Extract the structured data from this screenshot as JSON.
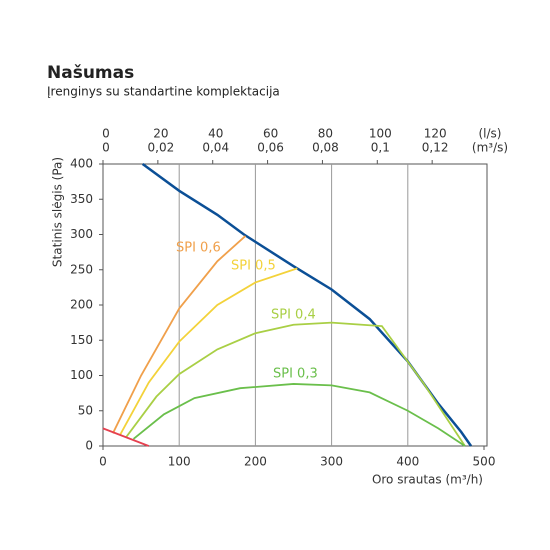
{
  "chart_data": {
    "type": "line",
    "title": "Našumas",
    "subtitle": "Įrenginys su standartine komplektacija",
    "x_label": "Oro srautas (m³/h)",
    "y_label": "Statinis slėgis (Pa)",
    "xlim": [
      0,
      500
    ],
    "xticks": [
      0,
      100,
      200,
      300,
      400,
      500
    ],
    "ylim": [
      0,
      400
    ],
    "yticks": [
      0,
      50,
      100,
      150,
      200,
      250,
      300,
      350,
      400
    ],
    "grid": true,
    "top_axes": [
      {
        "label": "(l/s)",
        "lim": [
          0,
          138.9
        ],
        "ticks": [
          0,
          20,
          40,
          60,
          80,
          100,
          120
        ]
      },
      {
        "label": "(m³/s)",
        "lim": [
          0,
          0.1389
        ],
        "ticks": [
          0,
          {
            "value": 0.02,
            "label": "0,02"
          },
          {
            "value": 0.04,
            "label": "0,04"
          },
          {
            "value": 0.06,
            "label": "0,06"
          },
          {
            "value": 0.08,
            "label": "0,08"
          },
          {
            "value": 0.1,
            "label": "0,1"
          },
          {
            "value": 0.12,
            "label": "0,12"
          }
        ]
      }
    ],
    "series": [
      {
        "color": "#0b4f96",
        "x": [
          52,
          100,
          150,
          185,
          250,
          300,
          350,
          400,
          440,
          470,
          483
        ],
        "values": [
          400,
          362,
          328,
          300,
          255,
          222,
          180,
          120,
          60,
          20,
          0
        ]
      },
      {
        "name": "SPI 0,6",
        "color": "#f0a04b",
        "x": [
          13,
          50,
          100,
          150,
          187
        ],
        "values": [
          18,
          100,
          195,
          262,
          298
        ]
      },
      {
        "name": "SPI 0,5",
        "color": "#f3d23a",
        "x": [
          22,
          60,
          100,
          150,
          200,
          255
        ],
        "values": [
          15,
          90,
          148,
          200,
          232,
          252
        ]
      },
      {
        "name": "SPI 0,4",
        "color": "#a9cf45",
        "x": [
          30,
          70,
          100,
          150,
          200,
          250,
          300,
          366,
          420,
          475
        ],
        "values": [
          12,
          70,
          102,
          137,
          160,
          172,
          175,
          170,
          90,
          0
        ]
      },
      {
        "name": "SPI 0,3",
        "color": "#6abf4b",
        "x": [
          40,
          80,
          120,
          180,
          250,
          300,
          350,
          400,
          440,
          475
        ],
        "values": [
          10,
          45,
          68,
          82,
          88,
          86,
          76,
          50,
          25,
          0
        ]
      },
      {
        "color": "#e6404f",
        "x": [
          0,
          60
        ],
        "values": [
          25,
          0
        ]
      }
    ]
  }
}
